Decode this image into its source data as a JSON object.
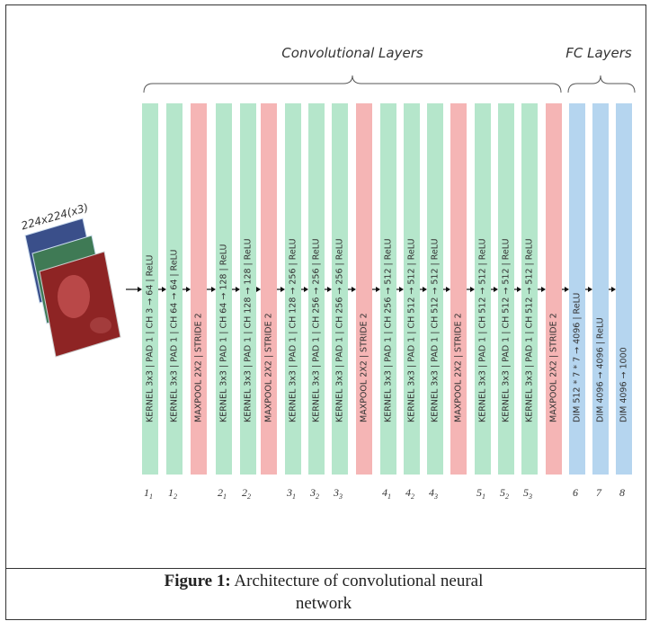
{
  "section_labels": {
    "convolutional": "Convolutional Layers",
    "fc": "FC Layers"
  },
  "input": {
    "label": "224x224(x3)"
  },
  "layers": [
    {
      "kind": "conv",
      "text": "KERNEL 3x3 | PAD 1 | CH 3 → 64 | ReLU",
      "index": {
        "main": "1",
        "sub": "1"
      }
    },
    {
      "kind": "conv",
      "text": "KERNEL 3x3 | PAD 1 | CH 64 → 64 | ReLU",
      "index": {
        "main": "1",
        "sub": "2"
      }
    },
    {
      "kind": "pool",
      "text": "MAXPOOL 2X2 | STRIDE 2"
    },
    {
      "kind": "conv",
      "text": "KERNEL 3x3 | PAD 1 | CH 64 → 128 | ReLU",
      "index": {
        "main": "2",
        "sub": "1"
      }
    },
    {
      "kind": "conv",
      "text": "KERNEL 3x3 | PAD 1 | CH 128 → 128 | ReLU",
      "index": {
        "main": "2",
        "sub": "2"
      }
    },
    {
      "kind": "pool",
      "text": "MAXPOOL 2X2 | STRIDE 2"
    },
    {
      "kind": "conv",
      "text": "KERNEL 3x3 | PAD 1 | CH 128 → 256 | ReLU",
      "index": {
        "main": "3",
        "sub": "1"
      }
    },
    {
      "kind": "conv",
      "text": "KERNEL 3x3 | PAD 1 | CH 256 → 256 | ReLU",
      "index": {
        "main": "3",
        "sub": "2"
      }
    },
    {
      "kind": "conv",
      "text": "KERNEL 3x3 | PAD 1 | CH 256 → 256 | ReLU",
      "index": {
        "main": "3",
        "sub": "3"
      }
    },
    {
      "kind": "pool",
      "text": "MAXPOOL 2X2 | STRIDE 2"
    },
    {
      "kind": "conv",
      "text": "KERNEL 3x3 | PAD 1 | CH 256 → 512 | ReLU",
      "index": {
        "main": "4",
        "sub": "1"
      }
    },
    {
      "kind": "conv",
      "text": "KERNEL 3x3 | PAD 1 | CH 512 → 512 | ReLU",
      "index": {
        "main": "4",
        "sub": "2"
      }
    },
    {
      "kind": "conv",
      "text": "KERNEL 3x3 | PAD 1 | CH 512 → 512 | ReLU",
      "index": {
        "main": "4",
        "sub": "3"
      }
    },
    {
      "kind": "pool",
      "text": "MAXPOOL 2X2 | STRIDE 2"
    },
    {
      "kind": "conv",
      "text": "KERNEL 3x3 | PAD 1 | CH 512 → 512 | ReLU",
      "index": {
        "main": "5",
        "sub": "1"
      }
    },
    {
      "kind": "conv",
      "text": "KERNEL 3x3 | PAD 1 | CH 512 → 512 | ReLU",
      "index": {
        "main": "5",
        "sub": "2"
      }
    },
    {
      "kind": "conv",
      "text": "KERNEL 3x3 | PAD 1 | CH 512 → 512 | ReLU",
      "index": {
        "main": "5",
        "sub": "3"
      }
    },
    {
      "kind": "pool",
      "text": "MAXPOOL 2X2 | STRIDE 2"
    },
    {
      "kind": "fc",
      "text": "DIM 512 * 7 * 7 → 4096 | ReLU",
      "index": {
        "main": "6"
      }
    },
    {
      "kind": "fc",
      "text": "DIM 4096 → 4096 | ReLU",
      "index": {
        "main": "7"
      }
    },
    {
      "kind": "fc",
      "text": "DIM 4096 → 1000",
      "index": {
        "main": "8"
      }
    }
  ],
  "caption": {
    "label": "Figure 1:",
    "text": "Architecture of convolutional neural network"
  }
}
